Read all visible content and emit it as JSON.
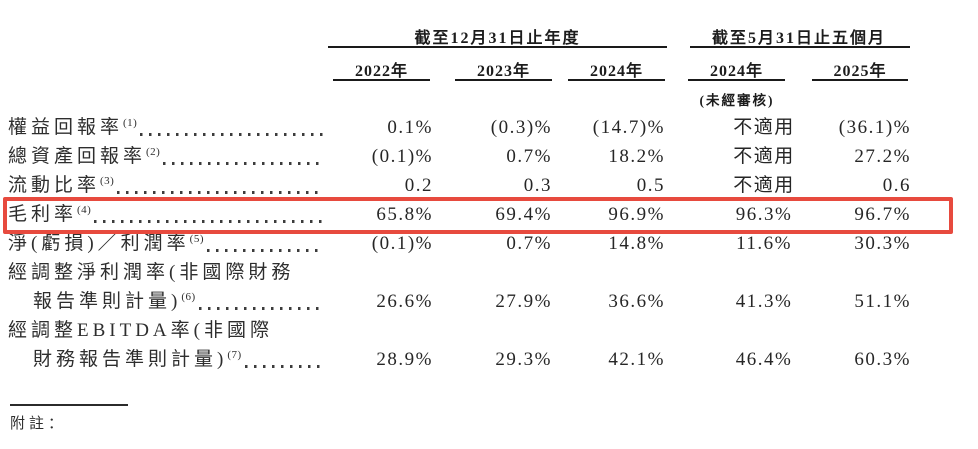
{
  "table": {
    "groups": [
      {
        "title": "截至12月31日止年度"
      },
      {
        "title": "截至5月31日止五個月",
        "note": "(未經審核)"
      }
    ],
    "years": [
      "2022年",
      "2023年",
      "2024年",
      "2024年",
      "2025年"
    ],
    "rows": [
      {
        "label": "權益回報率",
        "sup": "(1)",
        "values": [
          "0.1%",
          "(0.3)%",
          "(14.7)%",
          "不適用",
          "(36.1)%"
        ]
      },
      {
        "label": "總資產回報率",
        "sup": "(2)",
        "values": [
          "(0.1)%",
          "0.7%",
          "18.2%",
          "不適用",
          "27.2%"
        ]
      },
      {
        "label": "流動比率",
        "sup": "(3)",
        "values": [
          "0.2",
          "0.3",
          "0.5",
          "不適用",
          "0.6"
        ]
      },
      {
        "label": "毛利率",
        "sup": "(4)",
        "highlighted": true,
        "values": [
          "65.8%",
          "69.4%",
          "96.9%",
          "96.3%",
          "96.7%"
        ]
      },
      {
        "label": "淨(虧損)／利潤率",
        "sup": "(5)",
        "values": [
          "(0.1)%",
          "0.7%",
          "14.8%",
          "11.6%",
          "30.3%"
        ]
      },
      {
        "label": "經調整淨利潤率(非國際財務",
        "label2": "報告準則計量)",
        "sup": "(6)",
        "values": [
          "26.6%",
          "27.9%",
          "36.6%",
          "41.3%",
          "51.1%"
        ]
      },
      {
        "label": "經調整EBITDA率(非國際",
        "label2": "財務報告準則計量)",
        "sup": "(7)",
        "values": [
          "28.9%",
          "29.3%",
          "42.1%",
          "46.4%",
          "60.3%"
        ]
      }
    ],
    "highlight_color": "#e74a3e"
  },
  "footer": {
    "note_label": "附註："
  }
}
